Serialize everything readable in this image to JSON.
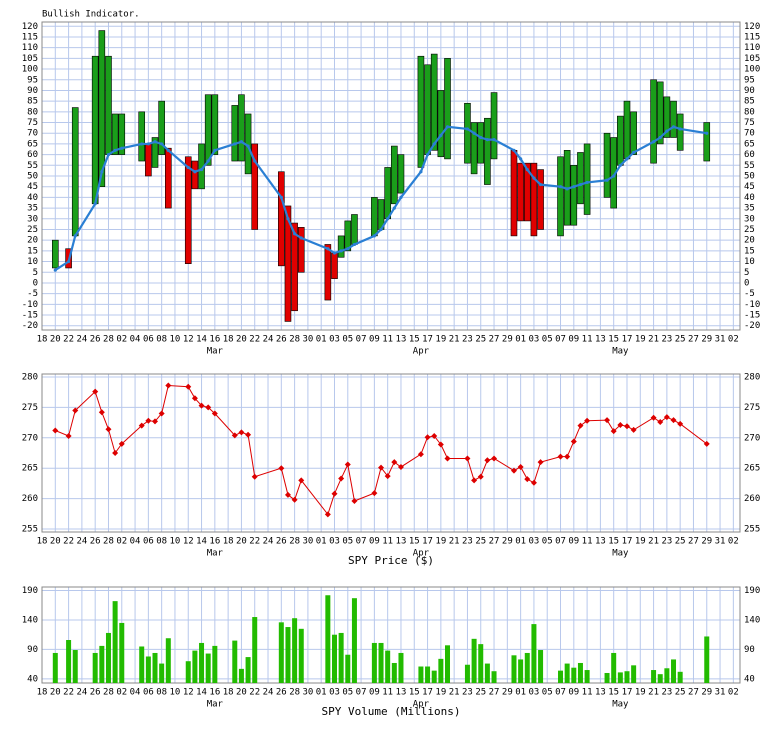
{
  "x_axis": {
    "xlim": [
      0,
      105
    ],
    "xticks": [
      {
        "value": 0,
        "label": "18"
      },
      {
        "value": 2,
        "label": "20"
      },
      {
        "value": 4,
        "label": "22"
      },
      {
        "value": 6,
        "label": "24"
      },
      {
        "value": 8,
        "label": "26"
      },
      {
        "value": 10,
        "label": "28"
      },
      {
        "value": 12,
        "label": "02"
      },
      {
        "value": 14,
        "label": "04"
      },
      {
        "value": 16,
        "label": "06"
      },
      {
        "value": 18,
        "label": "08"
      },
      {
        "value": 20,
        "label": "10"
      },
      {
        "value": 22,
        "label": "12"
      },
      {
        "value": 24,
        "label": "14"
      },
      {
        "value": 26,
        "label": "16"
      },
      {
        "value": 28,
        "label": "18"
      },
      {
        "value": 30,
        "label": "20"
      },
      {
        "value": 32,
        "label": "22"
      },
      {
        "value": 34,
        "label": "24"
      },
      {
        "value": 36,
        "label": "26"
      },
      {
        "value": 38,
        "label": "28"
      },
      {
        "value": 40,
        "label": "30"
      },
      {
        "value": 42,
        "label": "01"
      },
      {
        "value": 44,
        "label": "03"
      },
      {
        "value": 46,
        "label": "05"
      },
      {
        "value": 48,
        "label": "07"
      },
      {
        "value": 50,
        "label": "09"
      },
      {
        "value": 52,
        "label": "11"
      },
      {
        "value": 54,
        "label": "13"
      },
      {
        "value": 56,
        "label": "15"
      },
      {
        "value": 58,
        "label": "17"
      },
      {
        "value": 60,
        "label": "19"
      },
      {
        "value": 62,
        "label": "21"
      },
      {
        "value": 64,
        "label": "23"
      },
      {
        "value": 66,
        "label": "25"
      },
      {
        "value": 68,
        "label": "27"
      },
      {
        "value": 70,
        "label": "29"
      },
      {
        "value": 72,
        "label": "01"
      },
      {
        "value": 74,
        "label": "03"
      },
      {
        "value": 76,
        "label": "05"
      },
      {
        "value": 78,
        "label": "07"
      },
      {
        "value": 80,
        "label": "09"
      },
      {
        "value": 82,
        "label": "11"
      },
      {
        "value": 84,
        "label": "13"
      },
      {
        "value": 86,
        "label": "15"
      },
      {
        "value": 88,
        "label": "17"
      },
      {
        "value": 90,
        "label": "19"
      },
      {
        "value": 92,
        "label": "21"
      },
      {
        "value": 94,
        "label": "23"
      },
      {
        "value": 96,
        "label": "25"
      },
      {
        "value": 98,
        "label": "27"
      },
      {
        "value": 100,
        "label": "29"
      },
      {
        "value": 102,
        "label": "31"
      },
      {
        "value": 104,
        "label": "02"
      }
    ],
    "month_labels": [
      {
        "value": 26,
        "label": "Mar"
      },
      {
        "value": 57,
        "label": "Apr"
      },
      {
        "value": 87,
        "label": "May"
      }
    ]
  },
  "chart_data": [
    {
      "type": "openclose",
      "title": "Bullish Indicator.",
      "x": [
        2,
        4,
        5,
        8,
        9,
        10,
        11,
        12,
        15,
        16,
        17,
        18,
        19,
        22,
        23,
        24,
        25,
        26,
        29,
        30,
        31,
        32,
        36,
        37,
        38,
        39,
        43,
        44,
        45,
        46,
        47,
        50,
        51,
        52,
        53,
        54,
        57,
        58,
        59,
        60,
        61,
        64,
        65,
        66,
        67,
        68,
        71,
        72,
        73,
        74,
        75,
        78,
        79,
        80,
        81,
        82,
        85,
        86,
        87,
        88,
        89,
        92,
        93,
        94,
        95,
        96,
        100
      ],
      "open": [
        7,
        16,
        22,
        37,
        45,
        60,
        60,
        60,
        57,
        65,
        54,
        60,
        63,
        59,
        57,
        44,
        55,
        60,
        57,
        57,
        51,
        65,
        52,
        36,
        28,
        26,
        18,
        14,
        12,
        15,
        18,
        22,
        25,
        30,
        37,
        42,
        54,
        60,
        62,
        59,
        58,
        56,
        51,
        56,
        46,
        58,
        62,
        56,
        56,
        56,
        53,
        22,
        27,
        27,
        37,
        32,
        40,
        35,
        55,
        58,
        60,
        56,
        65,
        68,
        68,
        62,
        57
      ],
      "close": [
        20,
        7,
        82,
        106,
        118,
        106,
        79,
        79,
        80,
        50,
        68,
        85,
        35,
        9,
        44,
        65,
        88,
        88,
        83,
        88,
        79,
        25,
        8,
        -18,
        -13,
        5,
        -8,
        2,
        22,
        29,
        32,
        40,
        39,
        54,
        64,
        60,
        106,
        102,
        107,
        90,
        105,
        84,
        75,
        75,
        77,
        89,
        22,
        29,
        29,
        22,
        25,
        59,
        62,
        55,
        61,
        65,
        70,
        68,
        78,
        85,
        80,
        95,
        94,
        87,
        85,
        79,
        75
      ],
      "line": [
        6,
        10,
        22,
        37,
        52,
        60,
        62,
        63,
        65,
        65,
        66,
        65,
        62,
        54,
        52,
        53,
        57,
        62,
        65,
        66,
        64,
        57,
        40,
        30,
        23,
        21,
        16,
        14,
        15,
        16,
        18,
        22,
        25,
        30,
        35,
        40,
        52,
        60,
        65,
        69,
        73,
        72,
        70,
        68,
        67,
        67,
        62,
        58,
        53,
        49,
        46,
        45,
        44,
        45,
        46,
        47,
        48,
        50,
        55,
        58,
        61,
        66,
        68,
        71,
        73,
        72,
        70
      ],
      "up_color": "#1a9e1a",
      "down_color": "#e00000",
      "line_color": "#2a7fd4",
      "ylim": [
        -22,
        122
      ],
      "yticks": [
        -20,
        -15,
        -10,
        -5,
        0,
        5,
        10,
        15,
        20,
        25,
        30,
        35,
        40,
        45,
        50,
        55,
        60,
        65,
        70,
        75,
        80,
        85,
        90,
        95,
        100,
        105,
        110,
        115,
        120
      ],
      "grid": true
    },
    {
      "type": "line",
      "xlabel": "SPY Price ($)",
      "x": [
        2,
        4,
        5,
        8,
        9,
        10,
        11,
        12,
        15,
        16,
        17,
        18,
        19,
        22,
        23,
        24,
        25,
        26,
        29,
        30,
        31,
        32,
        36,
        37,
        38,
        39,
        43,
        44,
        45,
        46,
        47,
        50,
        51,
        52,
        53,
        54,
        57,
        58,
        59,
        60,
        61,
        64,
        65,
        66,
        67,
        68,
        71,
        72,
        73,
        74,
        75,
        78,
        79,
        80,
        81,
        82,
        85,
        86,
        87,
        88,
        89,
        92,
        93,
        94,
        95,
        96,
        100
      ],
      "values": [
        271.2,
        270.3,
        274.5,
        277.6,
        274.2,
        271.4,
        267.5,
        269,
        272,
        272.8,
        272.7,
        274,
        278.6,
        278.4,
        276.5,
        275.3,
        275,
        274,
        270.4,
        270.9,
        270.5,
        263.6,
        265,
        260.6,
        259.8,
        263,
        257.4,
        260.8,
        263.3,
        265.6,
        259.6,
        260.9,
        265.1,
        263.7,
        266,
        265.2,
        267.3,
        270.1,
        270.3,
        268.9,
        266.6,
        266.6,
        263,
        263.6,
        266.3,
        266.6,
        264.6,
        265.2,
        263.2,
        262.6,
        266,
        266.9,
        266.9,
        269.4,
        272,
        272.8,
        272.9,
        271.1,
        272.1,
        271.9,
        271.3,
        273.3,
        272.6,
        273.4,
        272.9,
        272.3,
        269
      ],
      "color": "#dd0000",
      "ylim": [
        254.5,
        280.5
      ],
      "yticks": [
        255,
        260,
        265,
        270,
        275,
        280
      ],
      "grid": true
    },
    {
      "type": "bar",
      "xlabel": "SPY Volume (Millions)",
      "x": [
        2,
        4,
        5,
        8,
        9,
        10,
        11,
        12,
        15,
        16,
        17,
        18,
        19,
        22,
        23,
        24,
        25,
        26,
        29,
        30,
        31,
        32,
        36,
        37,
        38,
        39,
        43,
        44,
        45,
        46,
        47,
        50,
        51,
        52,
        53,
        54,
        57,
        58,
        59,
        60,
        61,
        64,
        65,
        66,
        67,
        68,
        71,
        72,
        73,
        74,
        75,
        78,
        79,
        80,
        81,
        82,
        85,
        86,
        87,
        88,
        89,
        92,
        93,
        94,
        95,
        96,
        100
      ],
      "values": [
        84,
        106,
        89,
        84,
        96,
        118,
        172,
        135,
        95,
        78,
        84,
        66,
        109,
        70,
        88,
        101,
        83,
        96,
        105,
        57,
        77,
        145,
        136,
        128,
        143,
        125,
        182,
        115,
        118,
        81,
        177,
        101,
        101,
        88,
        67,
        84,
        61,
        61,
        54,
        74,
        97,
        64,
        108,
        99,
        66,
        53,
        80,
        73,
        84,
        133,
        89,
        54,
        66,
        59,
        67,
        55,
        50,
        84,
        51,
        53,
        63,
        55,
        48,
        58,
        73,
        52,
        112
      ],
      "color": "#22bb00",
      "ylim": [
        33,
        196
      ],
      "yticks": [
        40,
        90,
        140,
        190
      ],
      "grid": true
    }
  ]
}
